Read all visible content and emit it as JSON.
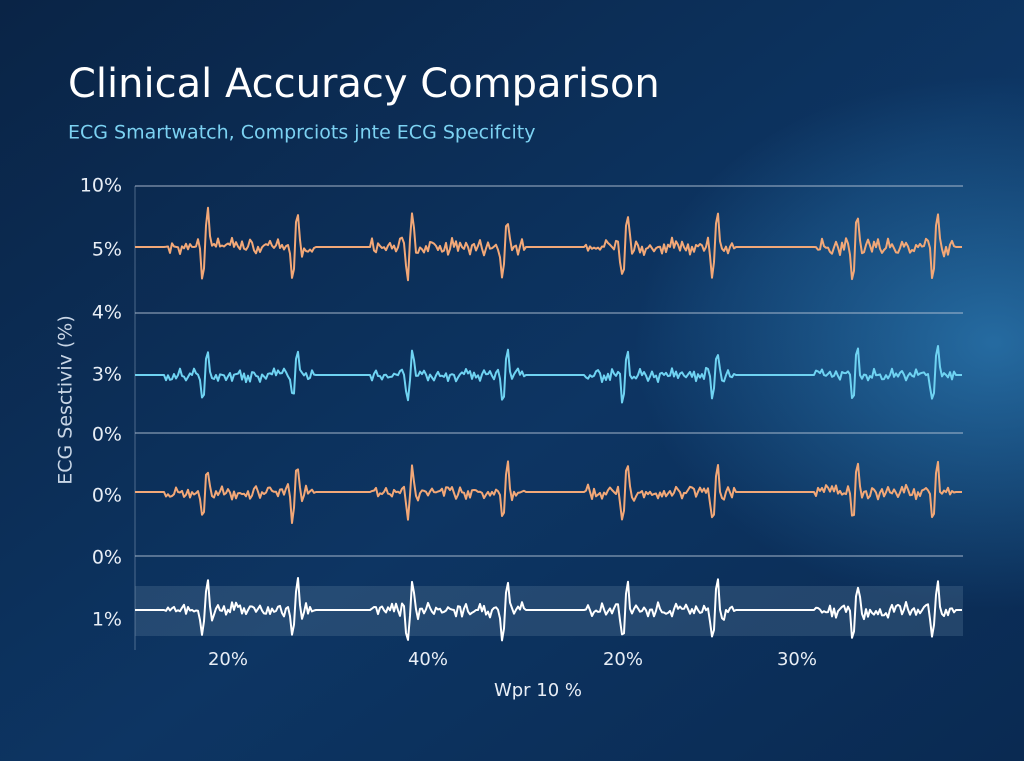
{
  "title": "Clinical Accuracy Comparison",
  "subtitle": "ECG Smartwatch, Comprciots jnte ECG Specifcity",
  "y_axis_label": "ECG Sesctiviv (%)",
  "y_labels": [
    "10%",
    "5%",
    "4%",
    "3%",
    "0%",
    "0%",
    "0%",
    "1%"
  ],
  "x_labels": [
    "20%",
    "40%",
    "20%",
    "30%"
  ],
  "x_axis_label": "Wpr 10 %"
}
